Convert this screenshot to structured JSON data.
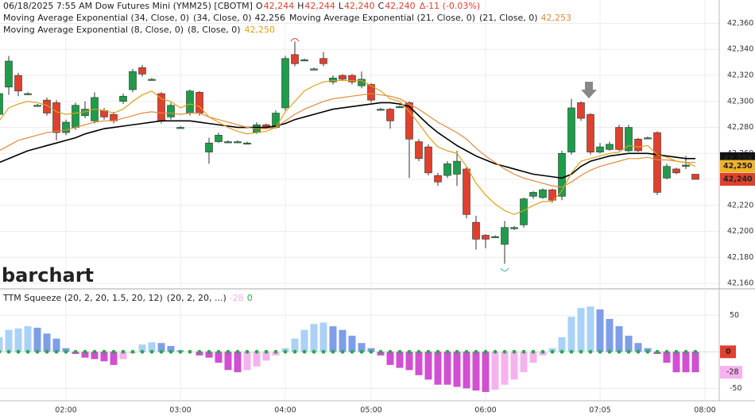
{
  "chart_data": [
    {
      "type": "candlestick",
      "header": {
        "title": "06/18/2025  7:55 AM  Dow Futures Mini (YMM25) [CBOTM]",
        "ohlc": [
          {
            "key": "O",
            "label": "42,244"
          },
          {
            "key": "H",
            "label": "42,244"
          },
          {
            "key": "L",
            "label": "42,240"
          },
          {
            "key": "C",
            "label": "42,240"
          }
        ],
        "change": "Δ-11 (-0.03%)"
      },
      "watermark": "barchart",
      "categories": [
        null,
        null,
        null,
        null,
        null,
        null,
        null,
        "02:00",
        null,
        null,
        null,
        null,
        null,
        null,
        null,
        null,
        null,
        null,
        null,
        "03:00",
        null,
        null,
        null,
        null,
        null,
        null,
        null,
        null,
        null,
        null,
        "04:00",
        null,
        null,
        null,
        null,
        null,
        null,
        null,
        null,
        "05:00",
        null,
        null,
        null,
        null,
        null,
        null,
        null,
        null,
        null,
        null,
        null,
        "06:00",
        null,
        null,
        null,
        null,
        null,
        null,
        null,
        null,
        null,
        null,
        null,
        "07:05",
        null,
        null,
        null,
        null,
        null,
        null,
        null,
        null,
        null,
        null,
        "08:00"
      ],
      "open": [
        42290,
        42311,
        42320,
        42306,
        42297,
        42301,
        42299,
        42276,
        42280,
        42289,
        42285,
        42293,
        42290,
        42300,
        42309,
        42326,
        42317,
        42306,
        42288,
        42280,
        42291,
        42307,
        42261,
        42269,
        42269,
        42269,
        42268,
        42276,
        42282,
        42280,
        42295,
        42336,
        42332,
        42325,
        42333,
        42315,
        42320,
        42320,
        42312,
        42313,
        42294,
        42294,
        42296,
        42299,
        42269,
        42265,
        42243,
        42243,
        42244,
        42248,
        42207,
        42197,
        42196,
        42190,
        42202,
        42205,
        42227,
        42226,
        42232,
        42227,
        42261,
        42299,
        42290,
        42261,
        42263,
        42280,
        42262,
        42271,
        42272,
        42276,
        42241,
        42248,
        42250,
        42244,
        null
      ],
      "high": [
        42310,
        42335,
        42322,
        42307,
        42298,
        42303,
        42301,
        42286,
        42299,
        42300,
        42307,
        42295,
        42292,
        42306,
        42325,
        42328,
        42318,
        42307,
        42299,
        42281,
        42309,
        42308,
        42272,
        42276,
        42270,
        42270,
        42269,
        42284,
        42283,
        42293,
        42335,
        42346,
        42333,
        42326,
        42338,
        42320,
        42321,
        42321,
        42323,
        42314,
        42295,
        42295,
        42297,
        42300,
        42271,
        42267,
        42245,
        42254,
        42262,
        42250,
        42212,
        42198,
        42197,
        42208,
        42204,
        42226,
        42231,
        42233,
        42233,
        42262,
        42302,
        42300,
        42291,
        42268,
        42269,
        42282,
        42282,
        42272,
        42273,
        42277,
        42252,
        42249,
        42258,
        42244,
        null
      ],
      "low": [
        42285,
        42305,
        42304,
        42305,
        42296,
        42289,
        42270,
        42274,
        42278,
        42287,
        42283,
        42286,
        42283,
        42298,
        42307,
        42319,
        42316,
        42283,
        42286,
        42279,
        42289,
        42289,
        42252,
        42268,
        42268,
        42268,
        42267,
        42275,
        42279,
        42279,
        42293,
        42327,
        42331,
        42324,
        42327,
        42313,
        42316,
        42313,
        42310,
        42299,
        42293,
        42279,
        42295,
        42241,
        42254,
        42243,
        42235,
        42241,
        42235,
        42210,
        42186,
        42187,
        42195,
        42175,
        42201,
        42203,
        42225,
        42225,
        42222,
        42224,
        42259,
        42285,
        42259,
        42260,
        42262,
        42262,
        42261,
        42261,
        42271,
        42228,
        42240,
        42244,
        42248,
        42240,
        null
      ],
      "close": [
        42306,
        42331,
        42308,
        42306,
        42297,
        42291,
        42276,
        42284,
        42297,
        42294,
        42303,
        42288,
        42285,
        42304,
        42323,
        42321,
        42317,
        42285,
        42297,
        42280,
        42308,
        42291,
        42268,
        42274,
        42269,
        42269,
        42268,
        42282,
        42280,
        42291,
        42333,
        42329,
        42332,
        42325,
        42329,
        42318,
        42317,
        42315,
        42317,
        42301,
        42294,
        42285,
        42296,
        42271,
        42256,
        42245,
        42238,
        42252,
        42254,
        42213,
        42194,
        42194,
        42196,
        42203,
        42203,
        42225,
        42230,
        42232,
        42224,
        42260,
        42295,
        42287,
        42261,
        42265,
        42267,
        42263,
        42280,
        42262,
        42272,
        42230,
        42250,
        42245,
        42251,
        42240,
        null
      ],
      "up_color": "#1e9c4a",
      "down_color": "#e0402e",
      "series": [
        {
          "name": "Moving Average Exponential (34, Close, 0)",
          "params": "(34, Close, 0)",
          "last_label": "42,256",
          "color": "#000000",
          "values": [
            42253,
            42256,
            42259,
            42262,
            42264,
            42266,
            42268,
            42270,
            42272,
            42275,
            42277,
            42279,
            42280,
            42281,
            42282,
            42283,
            42284,
            42285,
            42285,
            42285,
            42285,
            42284,
            42283,
            42282,
            42281,
            42280,
            42280,
            42280,
            42280,
            42281,
            42283,
            42286,
            42288,
            42290,
            42292,
            42294,
            42295,
            42296,
            42297,
            42298,
            42299,
            42299,
            42298,
            42296,
            42289,
            42282,
            42276,
            42271,
            42266,
            42262,
            42258,
            42255,
            42252,
            42250,
            42248,
            42246,
            42244,
            42243,
            42242,
            42241,
            42244,
            42250,
            42254,
            42256,
            42258,
            42259,
            42260,
            42260,
            42260,
            42259,
            42258,
            42257,
            42256,
            42256,
            null
          ]
        },
        {
          "name": "Moving Average Exponential (21, Close, 0)",
          "params": "(21, Close, 0)",
          "last_label": "42,253",
          "color": "#e08a3c",
          "values": [
            42262,
            42266,
            42270,
            42272,
            42274,
            42276,
            42277,
            42278,
            42280,
            42282,
            42284,
            42285,
            42285,
            42287,
            42289,
            42291,
            42292,
            42291,
            42291,
            42290,
            42291,
            42291,
            42288,
            42286,
            42284,
            42282,
            42280,
            42279,
            42279,
            42280,
            42285,
            42290,
            42294,
            42297,
            42300,
            42302,
            42303,
            42304,
            42305,
            42306,
            42305,
            42304,
            42302,
            42298,
            42294,
            42289,
            42284,
            42280,
            42276,
            42271,
            42264,
            42258,
            42253,
            42248,
            42244,
            42241,
            42239,
            42237,
            42235,
            42234,
            42238,
            42243,
            42247,
            42250,
            42252,
            42254,
            42256,
            42256,
            42257,
            42255,
            42255,
            42254,
            42253,
            42253,
            null
          ]
        },
        {
          "name": "Moving Average Exponential (8, Close, 0)",
          "params": "(8, Close, 0)",
          "last_label": "42,250",
          "color": "#d9a21b",
          "values": [
            42285,
            42295,
            42298,
            42300,
            42299,
            42297,
            42292,
            42290,
            42291,
            42292,
            42294,
            42293,
            42291,
            42294,
            42300,
            42305,
            42308,
            42302,
            42300,
            42295,
            42298,
            42296,
            42288,
            42284,
            42280,
            42277,
            42275,
            42276,
            42277,
            42280,
            42292,
            42300,
            42308,
            42312,
            42315,
            42316,
            42316,
            42316,
            42316,
            42312,
            42308,
            42302,
            42300,
            42292,
            42283,
            42273,
            42265,
            42262,
            42260,
            42250,
            42237,
            42228,
            42221,
            42216,
            42213,
            42216,
            42220,
            42223,
            42223,
            42231,
            42245,
            42254,
            42256,
            42258,
            42260,
            42261,
            42266,
            42265,
            42266,
            42259,
            42257,
            42254,
            42253,
            42250,
            null
          ]
        }
      ],
      "ylim": [
        42157,
        42378
      ],
      "yticks": [
        {
          "value": 42160,
          "label": "42,160"
        },
        {
          "value": 42180,
          "label": "42,180"
        },
        {
          "value": 42200,
          "label": "42,200"
        },
        {
          "value": 42220,
          "label": "42,220"
        },
        {
          "value": 42240,
          "label": "42,240"
        },
        {
          "value": 42260,
          "label": "42,260"
        },
        {
          "value": 42280,
          "label": "42,280"
        },
        {
          "value": 42300,
          "label": "42,300"
        },
        {
          "value": 42320,
          "label": "42,320"
        },
        {
          "value": 42340,
          "label": "42,340"
        },
        {
          "value": 42360,
          "label": "42,360"
        }
      ],
      "grid": true
    },
    {
      "type": "histogram",
      "title": "TTM Squeeze (20, 2, 20, 1.5, 20, 12)",
      "params": "(20, 2, 20, ...)",
      "squeeze_value": 0,
      "values": [
        20,
        30,
        32,
        35,
        33,
        25,
        18,
        5,
        -3,
        -8,
        -10,
        -13,
        -18,
        -10,
        -2,
        10,
        13,
        12,
        8,
        2,
        0,
        -5,
        -8,
        -15,
        -25,
        -28,
        -25,
        -20,
        -12,
        -5,
        5,
        18,
        30,
        38,
        40,
        35,
        30,
        22,
        12,
        5,
        -5,
        -18,
        -22,
        -25,
        -32,
        -38,
        -45,
        -45,
        -48,
        -50,
        -53,
        -55,
        -52,
        -45,
        -38,
        -28,
        -15,
        -5,
        5,
        20,
        48,
        60,
        62,
        58,
        45,
        35,
        22,
        12,
        5,
        -3,
        -15,
        -28,
        -28,
        -28,
        null
      ],
      "colors": {
        "up_rising": "#a9d2f6",
        "up_falling": "#7e9ee8",
        "down_falling": "#d14fd0",
        "down_rising": "#f5b2ee",
        "squeeze_off": "#2aa84a",
        "badge_zero": "#e0402e"
      },
      "ylim": [
        -67,
        84
      ],
      "yticks": [
        50,
        -50
      ],
      "grid": true
    }
  ]
}
